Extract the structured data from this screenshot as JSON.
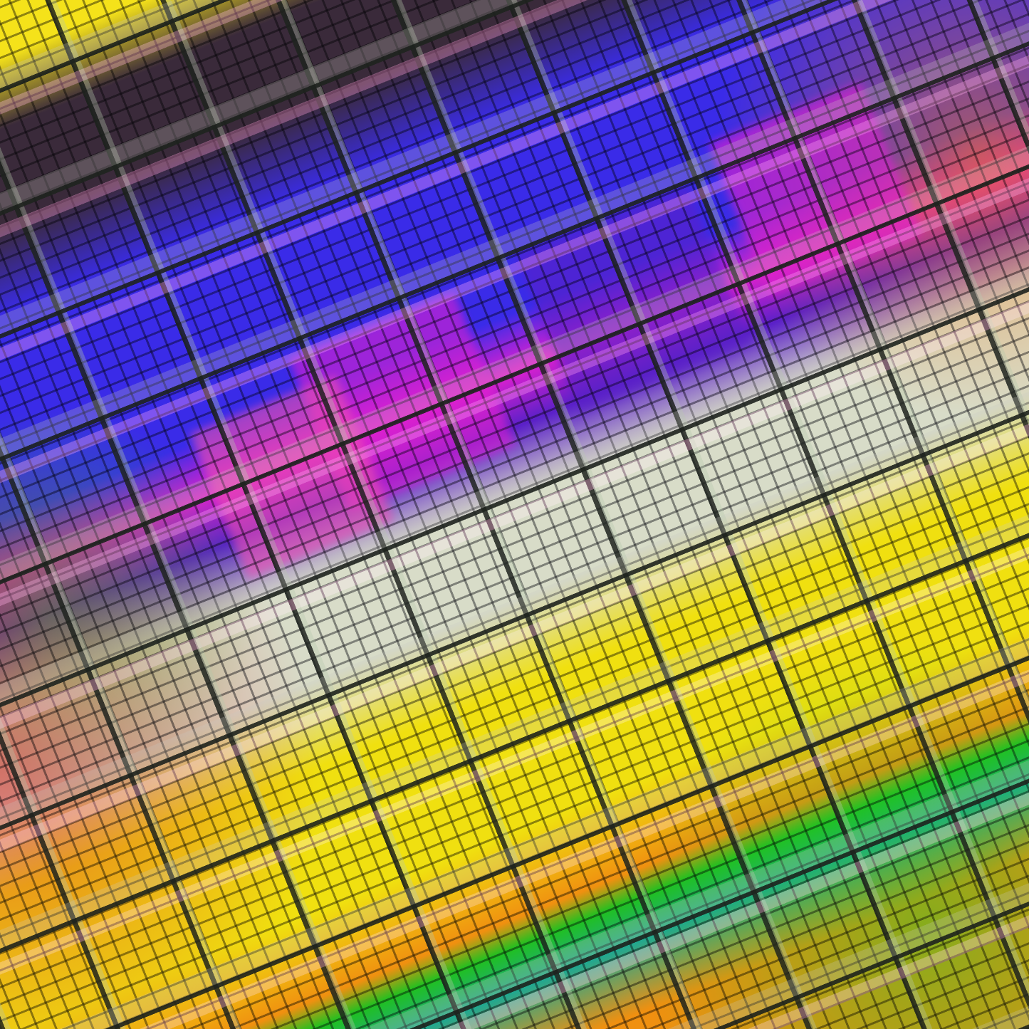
{
  "palette": {
    "yellow_top": "#f5e21a",
    "dark_purple": "#3a2a3a",
    "blue": "#3a2be8",
    "magenta": "#e020d0",
    "violet": "#5a20c8",
    "pale": "#d8dcc8",
    "yellow": "#f0e010",
    "green": "#20c020",
    "teal": "#20a890",
    "orange": "#f09010",
    "red": "#d02030"
  }
}
